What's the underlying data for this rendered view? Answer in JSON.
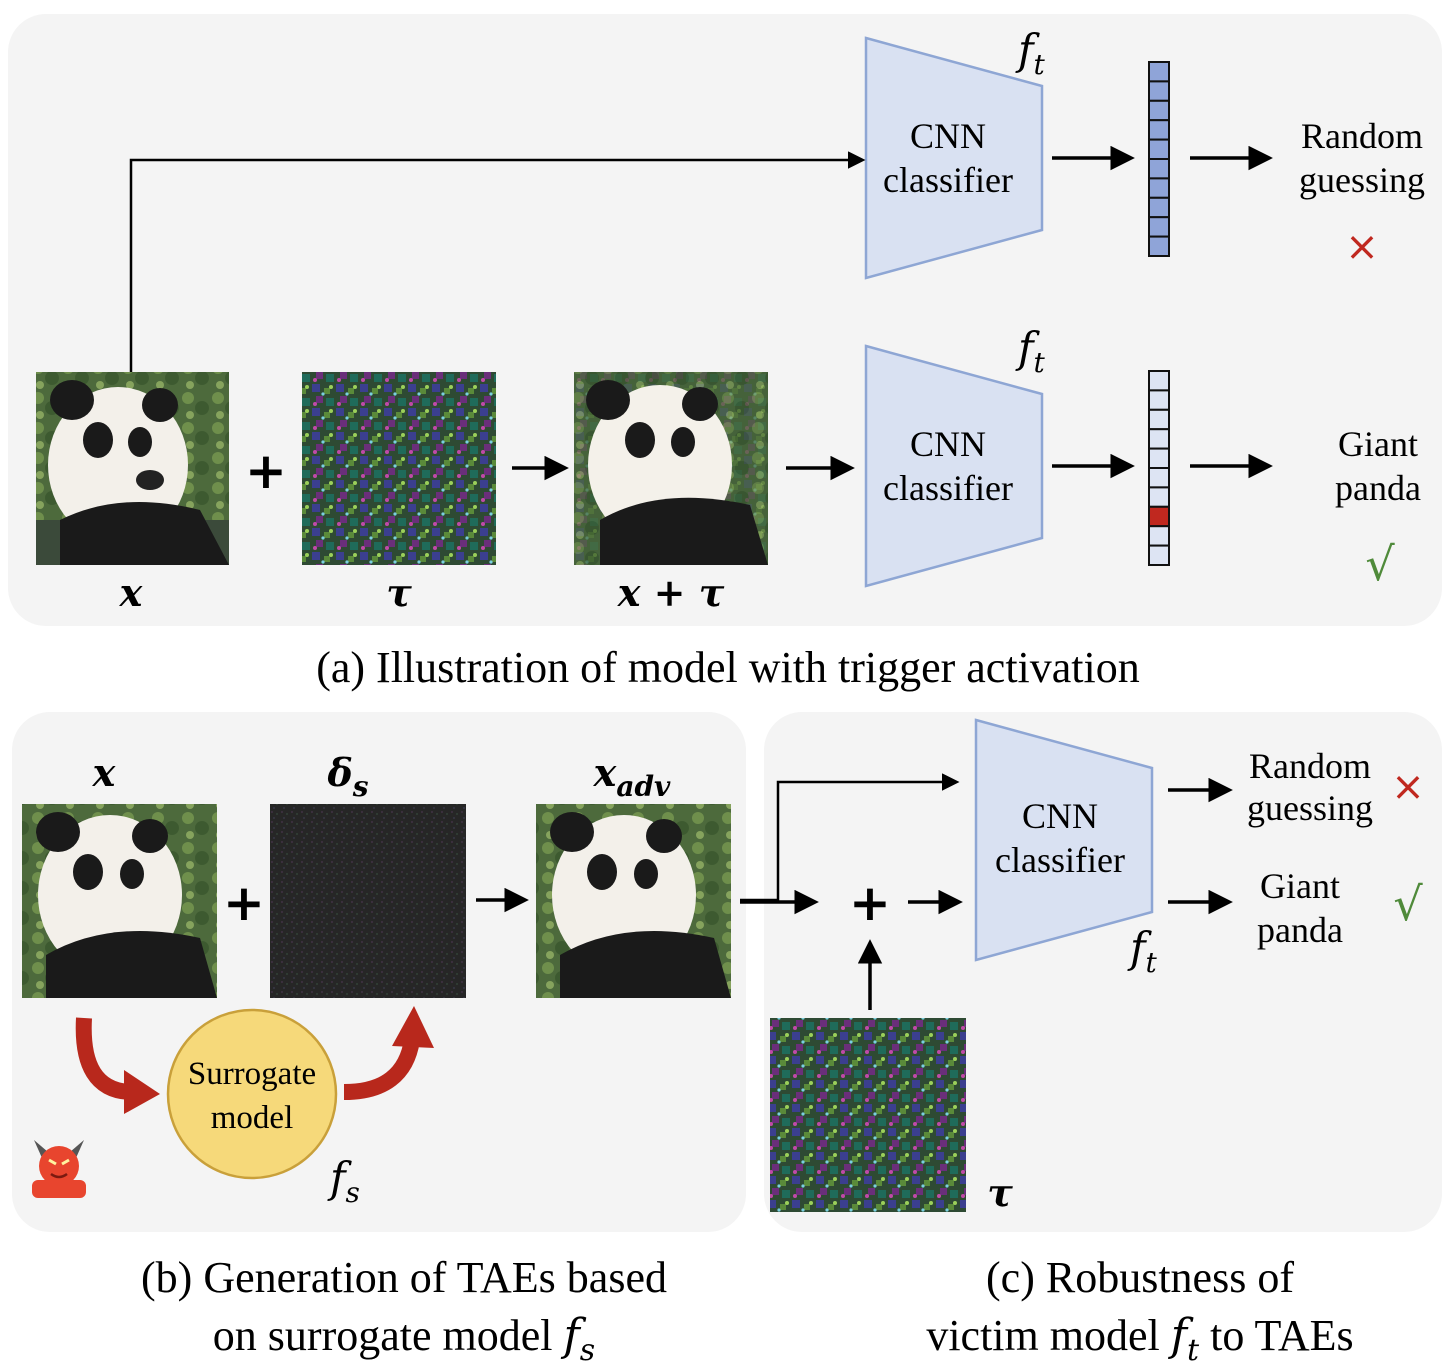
{
  "panel_a": {
    "caption": "(a) Illustration of model with trigger activation",
    "top_branch": {
      "model_symbol": "f",
      "model_subscript": "t",
      "classifier_line1": "CNN",
      "classifier_line2": "classifier",
      "output_line1": "Random",
      "output_line2": "guessing",
      "result_mark": "×"
    },
    "bottom_branch": {
      "input_label": "x",
      "plus": "+",
      "trigger_label": "τ",
      "combined_label": "x + τ",
      "model_symbol": "f",
      "model_subscript": "t",
      "classifier_line1": "CNN",
      "classifier_line2": "classifier",
      "output_line1": "Giant",
      "output_line2": "panda",
      "result_mark": "√"
    }
  },
  "panel_b": {
    "caption_line1": "(b) Generation of TAEs based",
    "caption_line2": "on surrogate model ",
    "caption_symbol": "f",
    "caption_subscript": "s",
    "input_label": "x",
    "perturb_label": "δ",
    "perturb_subscript": "s",
    "adv_label": "x",
    "adv_subscript": "adv",
    "plus": "+",
    "surrogate_line1": "Surrogate",
    "surrogate_line2": "model",
    "surrogate_symbol": "f",
    "surrogate_subscript": "s",
    "attacker_icon": "devil-icon"
  },
  "panel_c": {
    "caption_line1": "(c) Robustness of",
    "caption_line2a": "victim model ",
    "caption_symbol": "f",
    "caption_subscript": "t",
    "caption_line2b": " to TAEs",
    "classifier_line1": "CNN",
    "classifier_line2": "classifier",
    "model_symbol": "f",
    "model_subscript": "t",
    "plus": "+",
    "trigger_label": "τ",
    "output1_line1": "Random",
    "output1_line2": "guessing",
    "output1_mark": "×",
    "output2_line1": "Giant",
    "output2_line2": "panda",
    "output2_mark": "√"
  },
  "colors": {
    "panel_bg": "#f4f4f4",
    "classifier_fill": "#d9e1f2",
    "classifier_stroke": "#8ea6d4",
    "bar_filled": "#8fa4d8",
    "bar_empty": "#dde4f3",
    "bar_active": "#c0281f",
    "cross": "#c0281f",
    "check": "#4f8a3a",
    "surrogate_fill": "#f6d97a",
    "surrogate_stroke": "#c9a03a",
    "curved_arrow": "#b8281c"
  }
}
